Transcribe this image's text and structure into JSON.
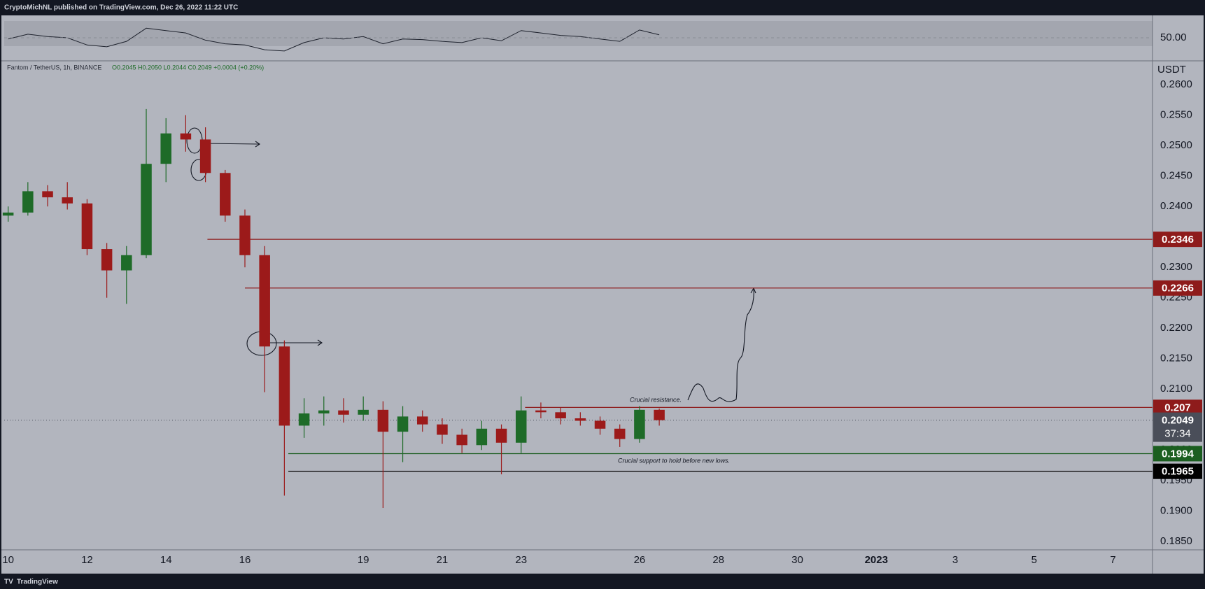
{
  "header": {
    "publisher": "CryptoMichNL published on TradingView.com, Dec 26, 2022 11:22 UTC"
  },
  "footer": {
    "brand": "TradingView"
  },
  "chart_data": {
    "type": "candlestick",
    "symbol": "Fantom / TetherUS, 1h, BINANCE",
    "ohlc_legend": "O0.2045 H0.2050 L0.2044 C0.2049 +0.0004 (+0.20%)",
    "unit": "USDT",
    "x": [
      10,
      10.5,
      11,
      11.5,
      12,
      12.5,
      13,
      13.5,
      14,
      14.5,
      15,
      15.5,
      16,
      16.5,
      17,
      17.5,
      18,
      18.5,
      19,
      19.5,
      20,
      20.5,
      21,
      21.5,
      22,
      22.5,
      23,
      23.5,
      24,
      24.5,
      25,
      25.5,
      26,
      26.5
    ],
    "open": [
      0.2385,
      0.239,
      0.2425,
      0.2415,
      0.2405,
      0.233,
      0.2295,
      0.232,
      0.247,
      0.252,
      0.251,
      0.2455,
      0.2385,
      0.232,
      0.217,
      0.204,
      0.206,
      0.2065,
      0.2058,
      0.2066,
      0.203,
      0.2055,
      0.2042,
      0.2025,
      0.2008,
      0.2035,
      0.2012,
      0.2065,
      0.2062,
      0.2052,
      0.2048,
      0.2035,
      0.2018,
      0.2066
    ],
    "high": [
      0.24,
      0.244,
      0.2435,
      0.244,
      0.2412,
      0.234,
      0.2335,
      0.256,
      0.2545,
      0.255,
      0.253,
      0.246,
      0.2395,
      0.2335,
      0.218,
      0.2085,
      0.2088,
      0.2085,
      0.2088,
      0.208,
      0.2072,
      0.2065,
      0.2052,
      0.2035,
      0.2048,
      0.2042,
      0.2088,
      0.2078,
      0.207,
      0.2062,
      0.2055,
      0.2042,
      0.2072,
      0.2068
    ],
    "low": [
      0.2375,
      0.2385,
      0.24,
      0.2395,
      0.232,
      0.225,
      0.224,
      0.2315,
      0.244,
      0.249,
      0.244,
      0.2375,
      0.23,
      0.2095,
      0.1925,
      0.202,
      0.204,
      0.2045,
      0.2048,
      0.1905,
      0.198,
      0.203,
      0.201,
      0.1995,
      0.2,
      0.196,
      0.1995,
      0.2052,
      0.2042,
      0.204,
      0.2025,
      0.2005,
      0.2012,
      0.204
    ],
    "close": [
      0.239,
      0.2425,
      0.2415,
      0.2405,
      0.233,
      0.2295,
      0.232,
      0.247,
      0.252,
      0.251,
      0.2455,
      0.2385,
      0.232,
      0.217,
      0.204,
      0.206,
      0.2065,
      0.2058,
      0.2066,
      0.203,
      0.2055,
      0.2042,
      0.2025,
      0.2008,
      0.2035,
      0.2012,
      0.2065,
      0.2062,
      0.2052,
      0.2048,
      0.2035,
      0.2018,
      0.2066,
      0.2049
    ],
    "up_color": "#1e6b28",
    "down_color": "#9c1a1a",
    "xlim": [
      9.9,
      39.0
    ],
    "xticks": [
      10,
      12,
      14,
      16,
      19,
      21,
      23,
      26,
      28,
      30,
      {
        "value": 32,
        "label": "2023"
      },
      {
        "value": 34,
        "label": "3"
      },
      {
        "value": 36,
        "label": "5"
      },
      {
        "value": 38,
        "label": "7"
      }
    ],
    "ylim": [
      0.1836,
      0.2638
    ],
    "yticks": [
      {
        "value": 0.26,
        "label": "0.2600"
      },
      {
        "value": 0.255,
        "label": "0.2550"
      },
      {
        "value": 0.25,
        "label": "0.2500"
      },
      {
        "value": 0.245,
        "label": "0.2450"
      },
      {
        "value": 0.24,
        "label": "0.2400"
      },
      {
        "value": 0.235,
        "label": "0.2350"
      },
      {
        "value": 0.23,
        "label": "0.2300"
      },
      {
        "value": 0.225,
        "label": "0.2250"
      },
      {
        "value": 0.22,
        "label": "0.2200"
      },
      {
        "value": 0.215,
        "label": "0.2150"
      },
      {
        "value": 0.21,
        "label": "0.2100"
      },
      {
        "value": 0.205,
        "label": "0.2050"
      },
      {
        "value": 0.2,
        "label": "0.2000"
      },
      {
        "value": 0.195,
        "label": "0.1950"
      },
      {
        "value": 0.19,
        "label": "0.1900"
      },
      {
        "value": 0.185,
        "label": "0.1850"
      }
    ],
    "grid": false,
    "levels": [
      {
        "value": 0.2346,
        "color": "#8e1b1b",
        "start": 15.05
      },
      {
        "value": 0.2266,
        "color": "#8e1b1b",
        "start": 16.0
      },
      {
        "value": 0.207,
        "color": "#8e1b1b",
        "start": 23.1
      },
      {
        "value": 0.1994,
        "color": "#1b5e20",
        "start": 17.1
      },
      {
        "value": 0.1965,
        "color": "#000000",
        "start": 17.1
      }
    ],
    "last_price": {
      "value": 0.2049,
      "countdown": "37:34",
      "color": "#4a4e59"
    },
    "annotations": [
      "Crucial resistance.",
      "Crucial support to hold before new lows."
    ],
    "rsi": {
      "values": [
        48,
        56,
        52,
        50,
        38,
        35,
        44,
        66,
        62,
        58,
        46,
        40,
        38,
        30,
        28,
        42,
        50,
        48,
        52,
        40,
        48,
        47,
        44,
        42,
        50,
        45,
        62,
        58,
        54,
        52,
        48,
        44,
        63,
        55
      ],
      "ylim": [
        15,
        85
      ],
      "yticks": [
        {
          "value": 50,
          "label": "50.00"
        }
      ],
      "color": "#1e222d"
    }
  }
}
